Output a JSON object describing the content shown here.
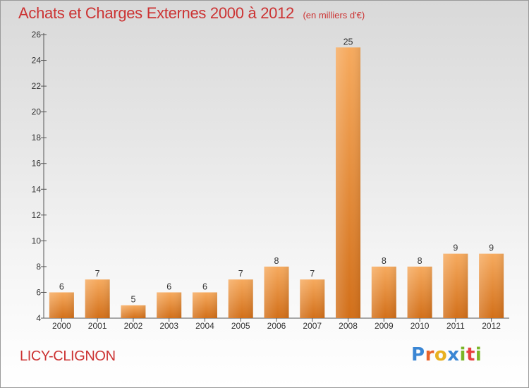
{
  "header": {
    "title": "Achats et Charges Externes 2000 à 2012",
    "unit": "(en milliers d'€)"
  },
  "footer": {
    "commune": "LICY-CLIGNON",
    "logo": {
      "text": "Proxiti",
      "letter_colors": [
        "#3a86d4",
        "#e8632b",
        "#e8b020",
        "#3a86d4",
        "#7ab527",
        "#e84040",
        "#7ab527"
      ]
    }
  },
  "colors": {
    "title": "#cc3333",
    "bar_top": "#f6aa5e",
    "bar_bottom": "#d26f19"
  },
  "chart_data": {
    "type": "bar",
    "title": "Achats et Charges Externes 2000 à 2012",
    "unit": "(en milliers d'€)",
    "categories": [
      "2000",
      "2001",
      "2002",
      "2003",
      "2004",
      "2005",
      "2006",
      "2007",
      "2008",
      "2009",
      "2010",
      "2011",
      "2012"
    ],
    "values": [
      6,
      7,
      5,
      6,
      6,
      7,
      8,
      7,
      25,
      8,
      8,
      9,
      9
    ],
    "ylim": [
      4,
      26
    ],
    "yticks": [
      4,
      6,
      8,
      10,
      12,
      14,
      16,
      18,
      20,
      22,
      24,
      26
    ],
    "grid": false,
    "data_labels": true
  }
}
